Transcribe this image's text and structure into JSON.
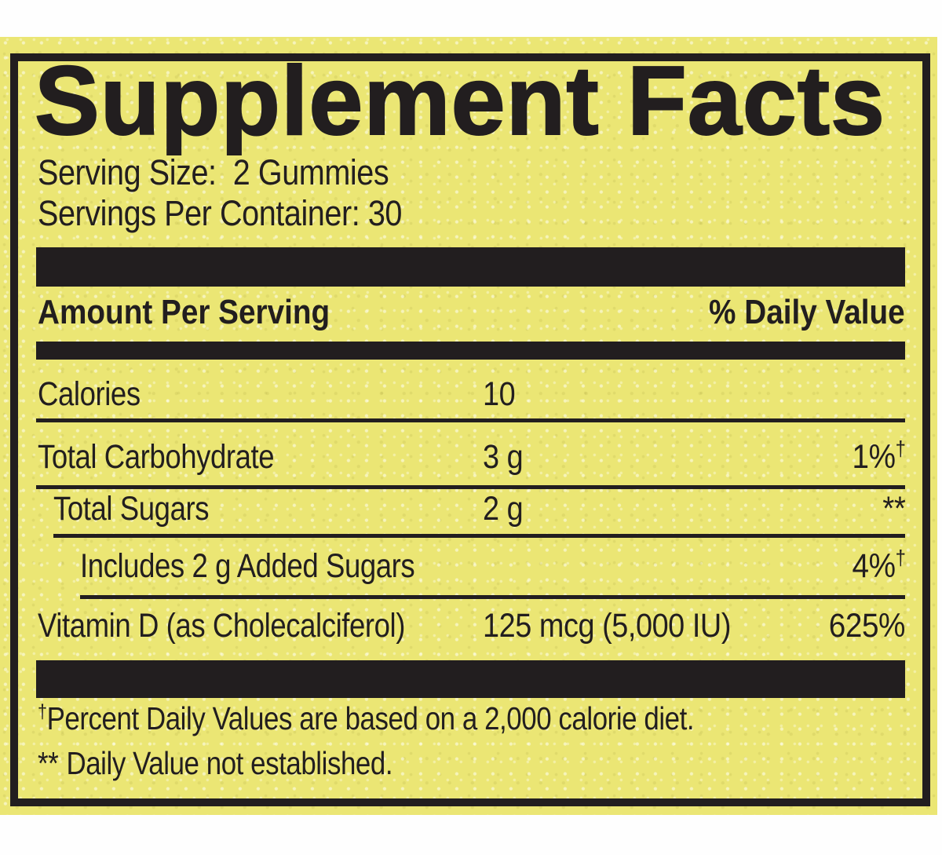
{
  "title": "Supplement Facts",
  "serving": {
    "size": "Serving Size:  2 Gummies",
    "per_container": "Servings Per Container: 30"
  },
  "header": {
    "amount_label": "Amount Per Serving",
    "dv_label": "% Daily Value"
  },
  "rows": [
    {
      "name": "Calories",
      "amount": "10",
      "dv": "",
      "dv_sup": ""
    },
    {
      "name": "Total Carbohydrate",
      "amount": "3 g",
      "dv": "1%",
      "dv_sup": "†"
    },
    {
      "name": "Total Sugars",
      "amount": "2 g",
      "dv": "**",
      "dv_sup": ""
    },
    {
      "name": "Includes 2 g Added Sugars",
      "amount": "",
      "dv": "4%",
      "dv_sup": "†"
    },
    {
      "name": "Vitamin D (as Cholecalciferol)",
      "amount": "125 mcg (5,000 IU)",
      "dv": "625%",
      "dv_sup": ""
    }
  ],
  "footnotes": [
    {
      "mark": "†",
      "text": "Percent Daily Values are based on a 2,000 calorie diet."
    },
    {
      "mark": "**",
      "text": "Daily Value not established."
    }
  ],
  "colors": {
    "label_background": "#ebe674",
    "ink": "#221e1f",
    "page_background": "#fefefe"
  }
}
